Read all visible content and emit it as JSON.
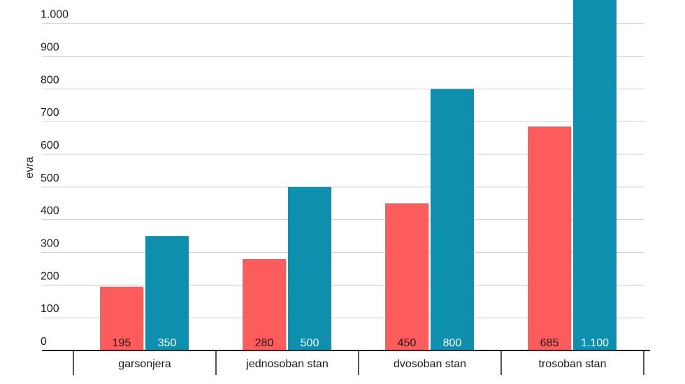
{
  "chart_data": {
    "type": "bar",
    "ylabel": "evra",
    "ylim": [
      0,
      1100
    ],
    "yticks": [
      0,
      100,
      200,
      300,
      400,
      500,
      600,
      700,
      800,
      900,
      1000
    ],
    "ytick_labels": [
      "0",
      "100",
      "200",
      "300",
      "400",
      "500",
      "600",
      "700",
      "800",
      "900",
      "1.000"
    ],
    "categories": [
      "garsonjera",
      "jednosoban stan",
      "dvosoban stan",
      "trosoban stan"
    ],
    "series": [
      {
        "color": "#fc5c5c",
        "label_color": "#1a1a1a",
        "values": [
          195,
          280,
          450,
          685
        ],
        "value_labels": [
          "195",
          "280",
          "450",
          "685"
        ]
      },
      {
        "color": "#0e8fae",
        "label_color": "#ffffff",
        "values": [
          350,
          500,
          800,
          1100
        ],
        "value_labels": [
          "350",
          "500",
          "800",
          "1.100"
        ]
      }
    ],
    "grid": true
  }
}
